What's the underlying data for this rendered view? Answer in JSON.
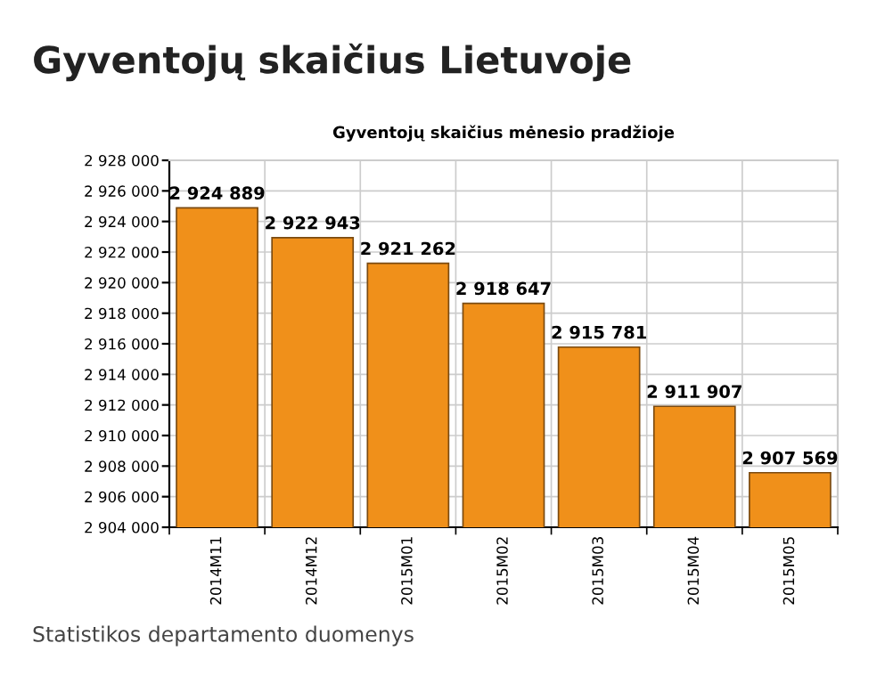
{
  "chart_data": {
    "type": "bar",
    "title": "Gyventojų skaičius Lietuvoje",
    "subtitle": "Gyventojų skaičius mėnesio pradžioje",
    "annotations": [
      "Statistikos departamento duomenys"
    ],
    "categories": [
      "2014M11",
      "2014M12",
      "2015M01",
      "2015M02",
      "2015M03",
      "2015M04",
      "2015M05"
    ],
    "values": [
      2924889,
      2922943,
      2921262,
      2918647,
      2915781,
      2911907,
      2907569
    ],
    "value_labels": [
      "2 924 889",
      "2 922 943",
      "2 921 262",
      "2 918 647",
      "2 915 781",
      "2 911 907",
      "2 907 569"
    ],
    "color": "#f0901a",
    "ylim": [
      2904000,
      2928000
    ],
    "yticks": [
      {
        "value": 2904000,
        "label": "2 904 000"
      },
      {
        "value": 2906000,
        "label": "2 906 000"
      },
      {
        "value": 2908000,
        "label": "2 908 000"
      },
      {
        "value": 2910000,
        "label": "2 910 000"
      },
      {
        "value": 2912000,
        "label": "2 912 000"
      },
      {
        "value": 2914000,
        "label": "2 914 000"
      },
      {
        "value": 2916000,
        "label": "2 916 000"
      },
      {
        "value": 2918000,
        "label": "2 918 000"
      },
      {
        "value": 2920000,
        "label": "2 920 000"
      },
      {
        "value": 2922000,
        "label": "2 922 000"
      },
      {
        "value": 2924000,
        "label": "2 924 000"
      },
      {
        "value": 2926000,
        "label": "2 926 000"
      },
      {
        "value": 2928000,
        "label": "2 928 000"
      }
    ],
    "grid": true
  }
}
